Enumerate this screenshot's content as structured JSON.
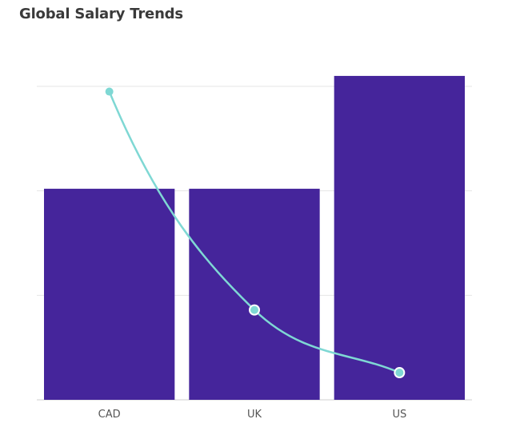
{
  "chart_data": {
    "type": "bar",
    "title": "Global Salary Trends",
    "xlabel": "",
    "ylabel": "",
    "categories": [
      "CAD",
      "UK",
      "US"
    ],
    "series": [
      {
        "type": "bar",
        "values": [
          2.02,
          2.02,
          3.1
        ],
        "color": "#45259b"
      },
      {
        "type": "line",
        "values": [
          2.95,
          0.86,
          0.26
        ],
        "color": "#7fd8d4"
      }
    ],
    "ylim": [
      0,
      3
    ],
    "grid": true,
    "legend": "none"
  }
}
